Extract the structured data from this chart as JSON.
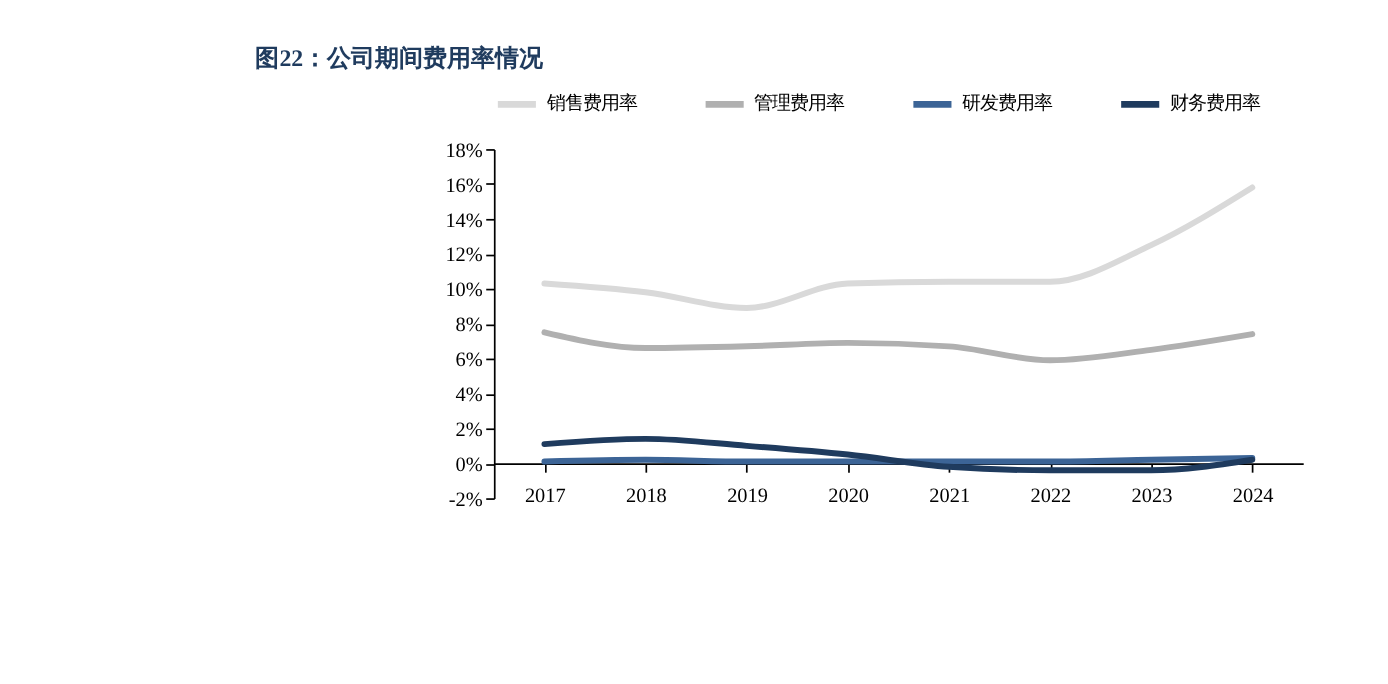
{
  "chart_data": {
    "type": "line",
    "title": "图22：公司期间费用率情况",
    "categories": [
      "2017",
      "2018",
      "2019",
      "2020",
      "2021",
      "2022",
      "2023",
      "2024"
    ],
    "series": [
      {
        "name": "销售费用率",
        "color": "#d9d9d9",
        "values": [
          10.3,
          9.8,
          8.9,
          10.3,
          10.4,
          10.4,
          12.5,
          15.8
        ]
      },
      {
        "name": "管理费用率",
        "color": "#b0b0b0",
        "values": [
          7.5,
          6.6,
          6.7,
          6.9,
          6.7,
          5.9,
          6.5,
          7.4
        ]
      },
      {
        "name": "研发费用率",
        "color": "#3c6496",
        "values": [
          0.1,
          0.2,
          0.1,
          0.1,
          0.1,
          0.1,
          0.2,
          0.3
        ]
      },
      {
        "name": "财务费用率",
        "color": "#1f3b5e",
        "values": [
          1.1,
          1.4,
          1.0,
          0.5,
          -0.2,
          -0.4,
          -0.4,
          0.2
        ]
      }
    ],
    "ylim": [
      -2,
      18
    ],
    "yticks": [
      {
        "value": -2,
        "label": "-2%"
      },
      {
        "value": 0,
        "label": "0%"
      },
      {
        "value": 2,
        "label": "2%"
      },
      {
        "value": 4,
        "label": "4%"
      },
      {
        "value": 6,
        "label": "6%"
      },
      {
        "value": 8,
        "label": "8%"
      },
      {
        "value": 10,
        "label": "10%"
      },
      {
        "value": 12,
        "label": "12%"
      },
      {
        "value": 14,
        "label": "14%"
      },
      {
        "value": 16,
        "label": "16%"
      },
      {
        "value": 18,
        "label": "18%"
      }
    ],
    "legend": "top",
    "grid": false,
    "marker": "none",
    "line_style": "solid"
  }
}
